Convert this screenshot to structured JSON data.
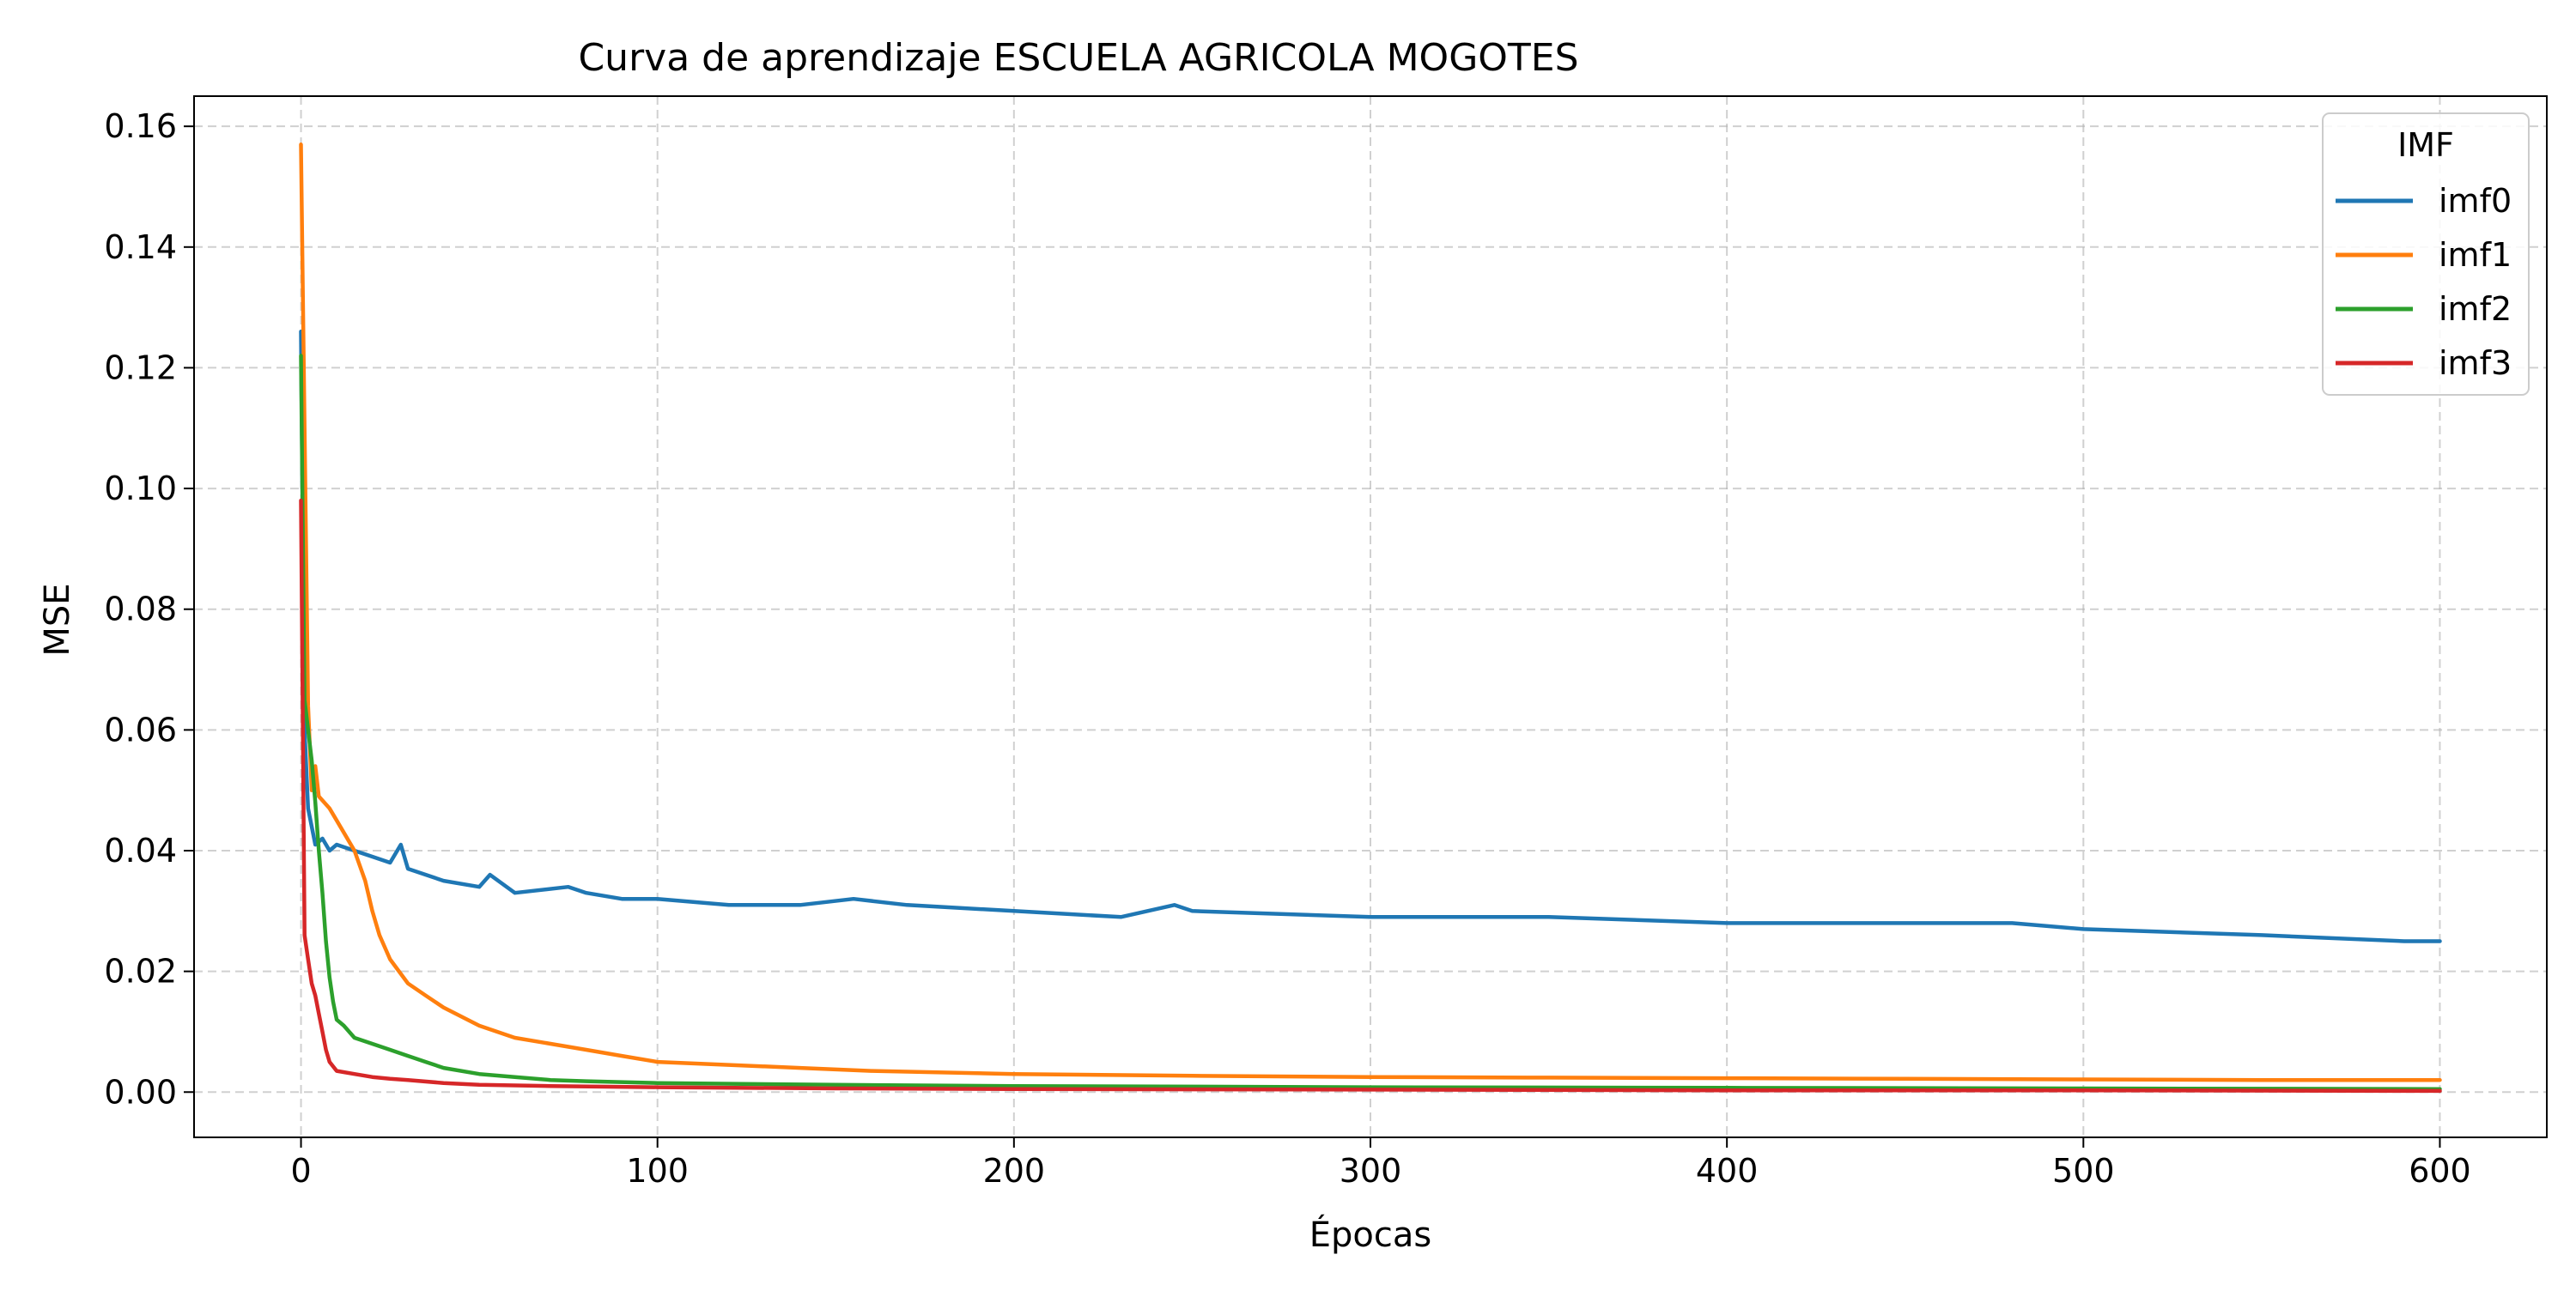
{
  "chart_data": {
    "type": "line",
    "title": "Curva de aprendizaje ESCUELA AGRICOLA MOGOTES",
    "xlabel": "Épocas",
    "ylabel": "MSE",
    "xlim": [
      -30,
      630
    ],
    "ylim": [
      -0.0075,
      0.165
    ],
    "x_ticks": [
      0,
      100,
      200,
      300,
      400,
      500,
      600
    ],
    "y_ticks": [
      0.0,
      0.02,
      0.04,
      0.06,
      0.08,
      0.1,
      0.12,
      0.14,
      0.16
    ],
    "x_tick_labels": [
      "0",
      "100",
      "200",
      "300",
      "400",
      "500",
      "600"
    ],
    "y_tick_labels": [
      "0.00",
      "0.02",
      "0.04",
      "0.06",
      "0.08",
      "0.10",
      "0.12",
      "0.14",
      "0.16"
    ],
    "grid": true,
    "legend": {
      "title": "IMF",
      "position": "top-right"
    },
    "series": [
      {
        "name": "imf0",
        "color": "#1f77b4",
        "points": [
          [
            0,
            0.126
          ],
          [
            1,
            0.06
          ],
          [
            2,
            0.047
          ],
          [
            4,
            0.041
          ],
          [
            6,
            0.042
          ],
          [
            8,
            0.04
          ],
          [
            10,
            0.041
          ],
          [
            15,
            0.04
          ],
          [
            20,
            0.039
          ],
          [
            25,
            0.038
          ],
          [
            28,
            0.041
          ],
          [
            30,
            0.037
          ],
          [
            40,
            0.035
          ],
          [
            50,
            0.034
          ],
          [
            53,
            0.036
          ],
          [
            60,
            0.033
          ],
          [
            75,
            0.034
          ],
          [
            80,
            0.033
          ],
          [
            90,
            0.032
          ],
          [
            100,
            0.032
          ],
          [
            120,
            0.031
          ],
          [
            140,
            0.031
          ],
          [
            155,
            0.032
          ],
          [
            170,
            0.031
          ],
          [
            200,
            0.03
          ],
          [
            230,
            0.029
          ],
          [
            245,
            0.031
          ],
          [
            250,
            0.03
          ],
          [
            300,
            0.029
          ],
          [
            350,
            0.029
          ],
          [
            400,
            0.028
          ],
          [
            450,
            0.028
          ],
          [
            480,
            0.028
          ],
          [
            500,
            0.027
          ],
          [
            550,
            0.026
          ],
          [
            590,
            0.025
          ],
          [
            600,
            0.025
          ]
        ]
      },
      {
        "name": "imf1",
        "color": "#ff7f0e",
        "points": [
          [
            0,
            0.157
          ],
          [
            1,
            0.11
          ],
          [
            2,
            0.064
          ],
          [
            3,
            0.05
          ],
          [
            4,
            0.054
          ],
          [
            5,
            0.049
          ],
          [
            8,
            0.047
          ],
          [
            10,
            0.045
          ],
          [
            15,
            0.04
          ],
          [
            18,
            0.035
          ],
          [
            20,
            0.03
          ],
          [
            22,
            0.026
          ],
          [
            25,
            0.022
          ],
          [
            30,
            0.018
          ],
          [
            35,
            0.016
          ],
          [
            40,
            0.014
          ],
          [
            50,
            0.011
          ],
          [
            60,
            0.009
          ],
          [
            70,
            0.008
          ],
          [
            80,
            0.007
          ],
          [
            90,
            0.006
          ],
          [
            100,
            0.005
          ],
          [
            120,
            0.0045
          ],
          [
            140,
            0.004
          ],
          [
            160,
            0.0035
          ],
          [
            200,
            0.003
          ],
          [
            250,
            0.0027
          ],
          [
            300,
            0.0025
          ],
          [
            350,
            0.0024
          ],
          [
            400,
            0.0023
          ],
          [
            450,
            0.0022
          ],
          [
            500,
            0.0021
          ],
          [
            550,
            0.002
          ],
          [
            600,
            0.002
          ]
        ]
      },
      {
        "name": "imf2",
        "color": "#2ca02c",
        "points": [
          [
            0,
            0.122
          ],
          [
            1,
            0.065
          ],
          [
            2,
            0.06
          ],
          [
            3,
            0.055
          ],
          [
            4,
            0.048
          ],
          [
            5,
            0.04
          ],
          [
            6,
            0.033
          ],
          [
            7,
            0.025
          ],
          [
            8,
            0.019
          ],
          [
            9,
            0.015
          ],
          [
            10,
            0.012
          ],
          [
            12,
            0.011
          ],
          [
            15,
            0.009
          ],
          [
            20,
            0.008
          ],
          [
            25,
            0.007
          ],
          [
            30,
            0.006
          ],
          [
            35,
            0.005
          ],
          [
            40,
            0.004
          ],
          [
            50,
            0.003
          ],
          [
            60,
            0.0025
          ],
          [
            70,
            0.002
          ],
          [
            80,
            0.0018
          ],
          [
            100,
            0.0015
          ],
          [
            150,
            0.0012
          ],
          [
            200,
            0.001
          ],
          [
            300,
            0.0008
          ],
          [
            400,
            0.0007
          ],
          [
            500,
            0.0006
          ],
          [
            600,
            0.0005
          ]
        ]
      },
      {
        "name": "imf3",
        "color": "#d62728",
        "points": [
          [
            0,
            0.098
          ],
          [
            1,
            0.026
          ],
          [
            2,
            0.022
          ],
          [
            3,
            0.018
          ],
          [
            4,
            0.016
          ],
          [
            5,
            0.013
          ],
          [
            6,
            0.01
          ],
          [
            7,
            0.007
          ],
          [
            8,
            0.005
          ],
          [
            10,
            0.0035
          ],
          [
            15,
            0.003
          ],
          [
            20,
            0.0025
          ],
          [
            25,
            0.0022
          ],
          [
            30,
            0.002
          ],
          [
            40,
            0.0015
          ],
          [
            50,
            0.0012
          ],
          [
            70,
            0.001
          ],
          [
            100,
            0.0008
          ],
          [
            150,
            0.0006
          ],
          [
            200,
            0.0005
          ],
          [
            300,
            0.0004
          ],
          [
            400,
            0.0003
          ],
          [
            500,
            0.0003
          ],
          [
            600,
            0.0002
          ]
        ]
      }
    ]
  }
}
